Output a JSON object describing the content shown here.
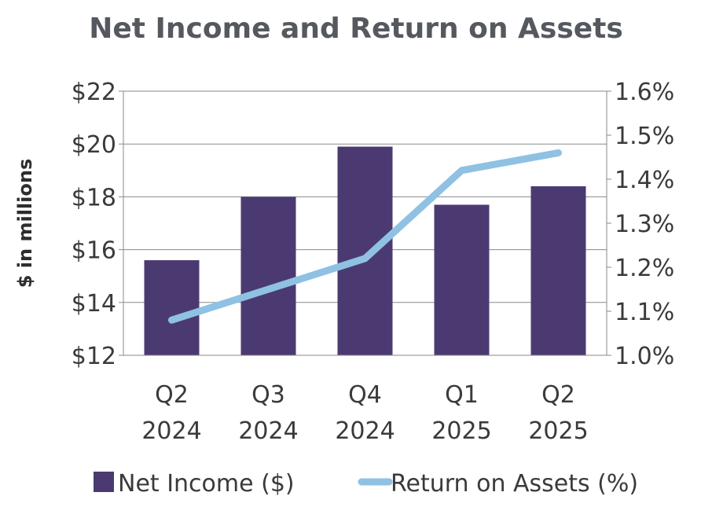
{
  "chart_data": {
    "type": "bar",
    "title": "Net Income and Return on Assets",
    "ylabel": "$ in millions",
    "categories": [
      [
        "Q2",
        "2024"
      ],
      [
        "Q3",
        "2024"
      ],
      [
        "Q4",
        "2024"
      ],
      [
        "Q1",
        "2025"
      ],
      [
        "Q2",
        "2025"
      ]
    ],
    "ylim": [
      12,
      22
    ],
    "y2lim": [
      1.0,
      1.6
    ],
    "yticks": [
      "$12",
      "$14",
      "$16",
      "$18",
      "$20",
      "$22"
    ],
    "y2ticks": [
      "1.0%",
      "1.1%",
      "1.2%",
      "1.3%",
      "1.4%",
      "1.5%",
      "1.6%"
    ],
    "grid": true,
    "legend_position": "bottom",
    "series": [
      {
        "name": "Net Income ($)",
        "type": "bar",
        "axis": "left",
        "values": [
          15.6,
          18.0,
          19.9,
          17.7,
          18.4
        ],
        "color": "#4b3a72"
      },
      {
        "name": "Return on Assets (%)",
        "type": "line",
        "axis": "right",
        "values": [
          1.08,
          1.15,
          1.22,
          1.42,
          1.46
        ],
        "color": "#8fc1e3"
      }
    ]
  }
}
